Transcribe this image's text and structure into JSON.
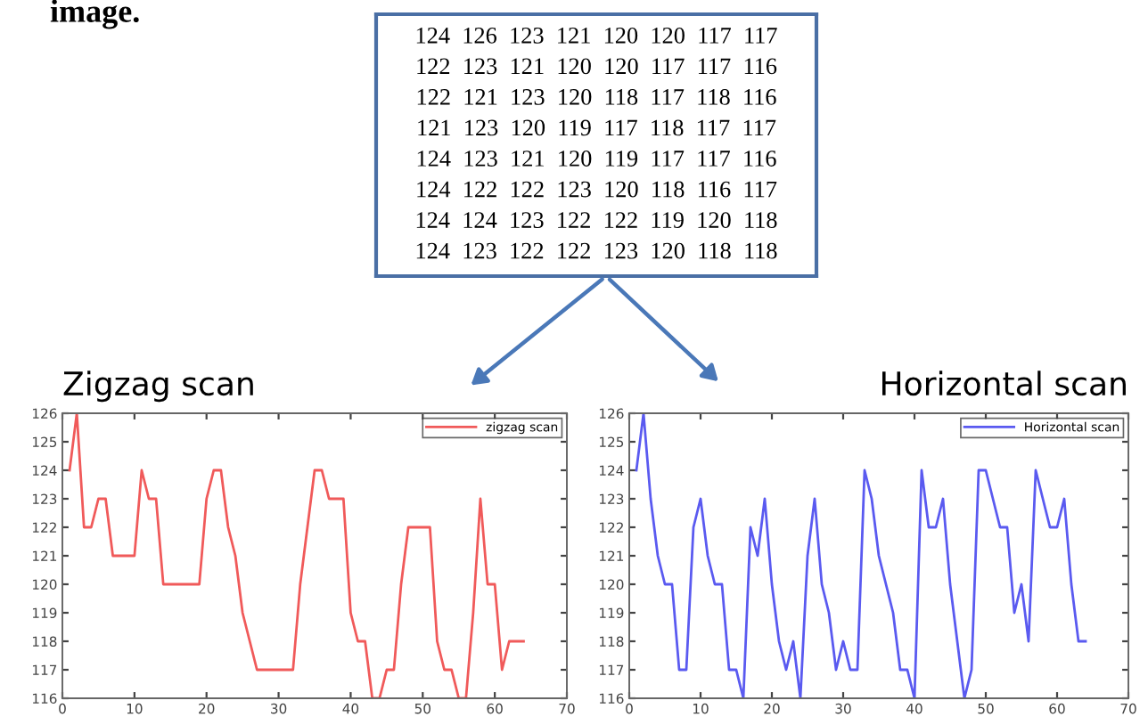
{
  "chart_data": [
    {
      "type": "other",
      "annotations": [
        "image.",
        "124  126  123  121  120  120  117  117",
        "122  123  121  120  120  117  117  116",
        "122  121  123  120  118  117  118  116",
        "121  123  120  119  117  118  117  117",
        "124  123  121  120  119  117  117  116",
        "124  122  122  123  120  118  116  117",
        "124  124  123  122  122  119  120  118",
        "124  123  122  122  123  120  118  118"
      ]
    },
    {
      "type": "line",
      "title": "Zigzag scan",
      "legend": "top right",
      "marker": "none",
      "line_style": "solid",
      "grid": false,
      "x": [
        1,
        2,
        3,
        4,
        5,
        6,
        7,
        8,
        9,
        10,
        11,
        12,
        13,
        14,
        15,
        16,
        17,
        18,
        19,
        20,
        21,
        22,
        23,
        24,
        25,
        26,
        27,
        28,
        29,
        30,
        31,
        32,
        33,
        34,
        35,
        36,
        37,
        38,
        39,
        40,
        41,
        42,
        43,
        44,
        45,
        46,
        47,
        48,
        49,
        50,
        51,
        52,
        53,
        54,
        55,
        56,
        57,
        58,
        59,
        60,
        61,
        62,
        63,
        64
      ],
      "xlim": [
        0,
        70
      ],
      "xticks": [
        0,
        10,
        20,
        30,
        40,
        50,
        60,
        70
      ],
      "ylim": [
        116,
        126
      ],
      "yticks": [
        116,
        117,
        118,
        119,
        120,
        121,
        122,
        123,
        124,
        125,
        126
      ],
      "series": [
        {
          "name": "zigzag scan",
          "color": "#f05a5a",
          "values": [
            124,
            126,
            122,
            122,
            123,
            123,
            121,
            121,
            121,
            121,
            124,
            123,
            123,
            120,
            120,
            120,
            120,
            120,
            120,
            123,
            124,
            124,
            122,
            121,
            119,
            118,
            117,
            117,
            117,
            117,
            117,
            117,
            120,
            122,
            124,
            124,
            123,
            123,
            123,
            119,
            118,
            118,
            116,
            116,
            117,
            117,
            120,
            122,
            122,
            122,
            122,
            118,
            117,
            117,
            116,
            116,
            119,
            123,
            120,
            120,
            117,
            118,
            118,
            118
          ]
        }
      ]
    },
    {
      "type": "line",
      "title": "Horizontal scan",
      "legend": "top right",
      "marker": "none",
      "line_style": "solid",
      "grid": false,
      "x": [
        1,
        2,
        3,
        4,
        5,
        6,
        7,
        8,
        9,
        10,
        11,
        12,
        13,
        14,
        15,
        16,
        17,
        18,
        19,
        20,
        21,
        22,
        23,
        24,
        25,
        26,
        27,
        28,
        29,
        30,
        31,
        32,
        33,
        34,
        35,
        36,
        37,
        38,
        39,
        40,
        41,
        42,
        43,
        44,
        45,
        46,
        47,
        48,
        49,
        50,
        51,
        52,
        53,
        54,
        55,
        56,
        57,
        58,
        59,
        60,
        61,
        62,
        63,
        64
      ],
      "xlim": [
        0,
        70
      ],
      "xticks": [
        0,
        10,
        20,
        30,
        40,
        50,
        60,
        70
      ],
      "ylim": [
        116,
        126
      ],
      "yticks": [
        116,
        117,
        118,
        119,
        120,
        121,
        122,
        123,
        124,
        125,
        126
      ],
      "series": [
        {
          "name": "Horizontal scan",
          "color": "#5a5af0",
          "values": [
            124,
            126,
            123,
            121,
            120,
            120,
            117,
            117,
            122,
            123,
            121,
            120,
            120,
            117,
            117,
            116,
            122,
            121,
            123,
            120,
            118,
            117,
            118,
            116,
            121,
            123,
            120,
            119,
            117,
            118,
            117,
            117,
            124,
            123,
            121,
            120,
            119,
            117,
            117,
            116,
            124,
            122,
            122,
            123,
            120,
            118,
            116,
            117,
            124,
            124,
            123,
            122,
            122,
            119,
            120,
            118,
            124,
            123,
            122,
            122,
            123,
            120,
            118,
            118
          ]
        }
      ]
    }
  ]
}
